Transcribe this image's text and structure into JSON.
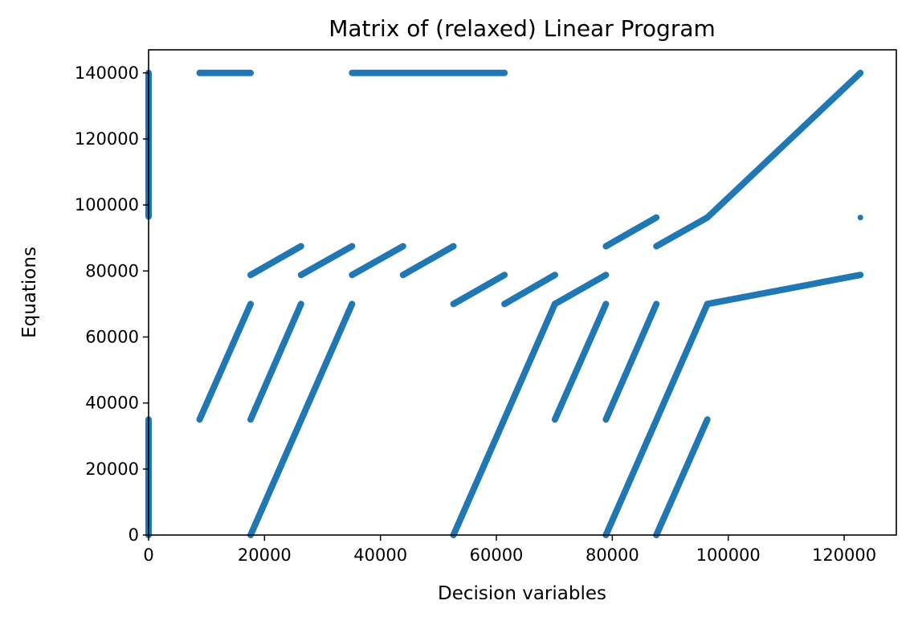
{
  "chart_data": {
    "type": "scatter",
    "title": "Matrix of (relaxed) Linear Program",
    "xlabel": "Decision variables",
    "ylabel": "Equations",
    "xlim": [
      0,
      129000
    ],
    "ylim": [
      0,
      147000
    ],
    "xticks": [
      0,
      20000,
      40000,
      60000,
      80000,
      100000,
      120000
    ],
    "yticks": [
      0,
      20000,
      40000,
      60000,
      80000,
      100000,
      120000,
      140000
    ],
    "grid": false,
    "legend": "none",
    "marker_color": "#1f77b4",
    "segments": [
      {
        "x1": 0,
        "y1": 0,
        "x2": 0,
        "y2": 35000
      },
      {
        "x1": 0,
        "y1": 96500,
        "x2": 0,
        "y2": 140000
      },
      {
        "x1": 8800,
        "y1": 140000,
        "x2": 17600,
        "y2": 140000
      },
      {
        "x1": 35100,
        "y1": 140000,
        "x2": 61400,
        "y2": 140000
      },
      {
        "x1": 17600,
        "y1": 78800,
        "x2": 26300,
        "y2": 87500
      },
      {
        "x1": 26300,
        "y1": 78800,
        "x2": 35100,
        "y2": 87500
      },
      {
        "x1": 35100,
        "y1": 78800,
        "x2": 43900,
        "y2": 87500
      },
      {
        "x1": 43900,
        "y1": 78800,
        "x2": 52600,
        "y2": 87500
      },
      {
        "x1": 52600,
        "y1": 70000,
        "x2": 61400,
        "y2": 78800
      },
      {
        "x1": 61400,
        "y1": 70000,
        "x2": 70100,
        "y2": 78800
      },
      {
        "x1": 70100,
        "y1": 70000,
        "x2": 78900,
        "y2": 78800
      },
      {
        "x1": 78900,
        "y1": 87500,
        "x2": 87600,
        "y2": 96200
      },
      {
        "x1": 87600,
        "y1": 87500,
        "x2": 96400,
        "y2": 96200
      },
      {
        "x1": 96400,
        "y1": 96200,
        "x2": 122800,
        "y2": 140000
      },
      {
        "x1": 96400,
        "y1": 70000,
        "x2": 122800,
        "y2": 78800
      },
      {
        "x1": 8800,
        "y1": 35000,
        "x2": 17600,
        "y2": 70000
      },
      {
        "x1": 17600,
        "y1": 35000,
        "x2": 26300,
        "y2": 70000
      },
      {
        "x1": 17600,
        "y1": 0,
        "x2": 35100,
        "y2": 70000
      },
      {
        "x1": 52600,
        "y1": 0,
        "x2": 70100,
        "y2": 70000
      },
      {
        "x1": 70100,
        "y1": 35000,
        "x2": 78900,
        "y2": 70000
      },
      {
        "x1": 78900,
        "y1": 35000,
        "x2": 87600,
        "y2": 70000
      },
      {
        "x1": 78900,
        "y1": 0,
        "x2": 96400,
        "y2": 70000
      },
      {
        "x1": 87600,
        "y1": 0,
        "x2": 96400,
        "y2": 35000
      }
    ],
    "points": [
      {
        "x": 122800,
        "y": 96200
      }
    ]
  }
}
